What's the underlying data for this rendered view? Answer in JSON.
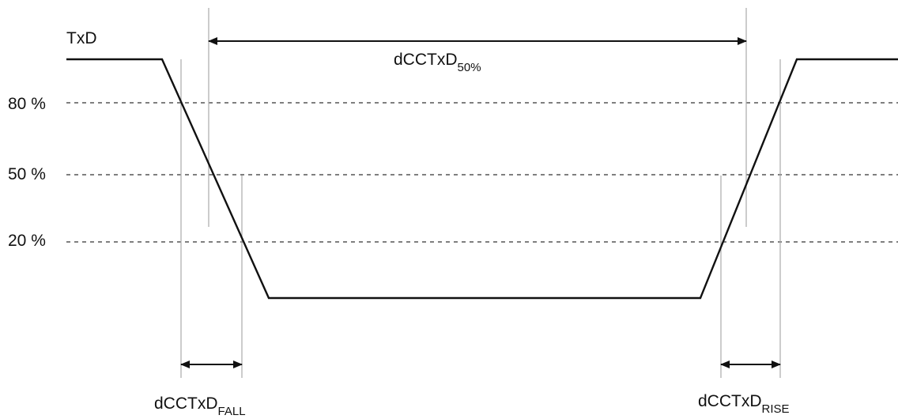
{
  "signal": {
    "name": "TxD"
  },
  "levels": [
    {
      "label": "80 %"
    },
    {
      "label": "50 %"
    },
    {
      "label": "20 %"
    }
  ],
  "measurements": {
    "period": {
      "base": "dCCTxD",
      "subscript": "50%"
    },
    "fall": {
      "base": "dCCTxD",
      "subscript": "FALL"
    },
    "rise": {
      "base": "dCCTxD",
      "subscript": "RISE"
    }
  },
  "colors": {
    "waveform": "#111111",
    "guides": "#aaaaaa",
    "dashes": "#333333"
  }
}
